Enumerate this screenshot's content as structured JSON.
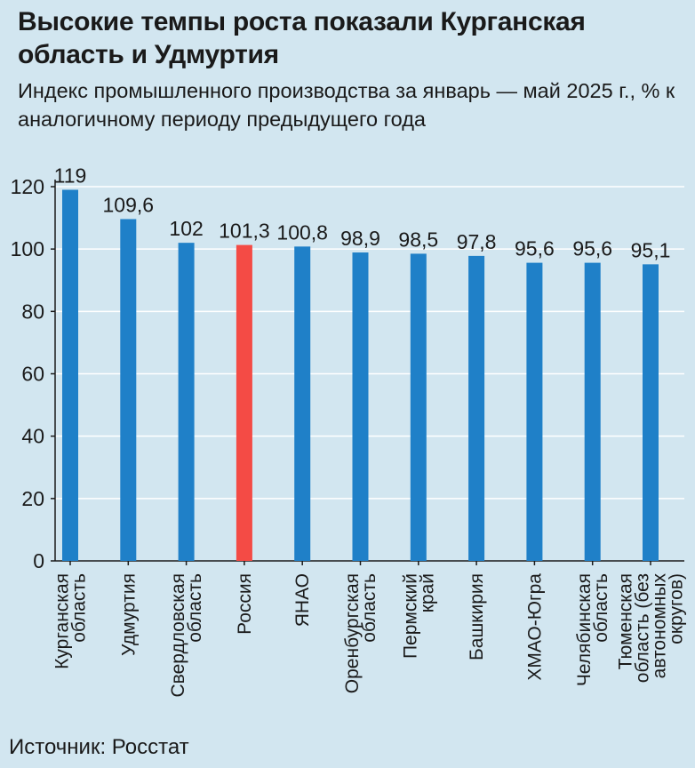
{
  "title": "Высокие темпы роста показали Курганская область и Удмуртия",
  "subtitle": "Индекс промышленного производства за январь — май 2025 г., % к аналогичному периоду предыдущего года",
  "source": "Источник: Росстат",
  "colors": {
    "background": "#d2e6f0",
    "bar": "#1f80c8",
    "highlight": "#f44b45",
    "gridline": "#ffffff"
  },
  "chart_data": {
    "type": "bar",
    "title": "Индекс промышленного производства за январь — май 2025 г., % к аналогичному периоду предыдущего года",
    "xlabel": "",
    "ylabel": "",
    "ylim": [
      0,
      120
    ],
    "yticks": [
      0,
      20,
      40,
      60,
      80,
      100,
      120
    ],
    "grid": true,
    "categories": [
      [
        "Курганская",
        "область"
      ],
      [
        "Удмуртия"
      ],
      [
        "Свердловская",
        "область"
      ],
      [
        "Россия"
      ],
      [
        "ЯНАО"
      ],
      [
        "Оренбургская",
        "область"
      ],
      [
        "Пермский",
        "край"
      ],
      [
        "Башкирия"
      ],
      [
        "ХМАО-Югра"
      ],
      [
        "Челябинская",
        "область"
      ],
      [
        "Тюменская",
        "область (без",
        "автономных",
        "округов)"
      ]
    ],
    "values": [
      119,
      109.6,
      102,
      101.3,
      100.8,
      98.9,
      98.5,
      97.8,
      95.6,
      95.6,
      95.1
    ],
    "value_labels": [
      "119",
      "109,6",
      "102",
      "101,3",
      "100,8",
      "98,9",
      "98,5",
      "97,8",
      "95,6",
      "95,6",
      "95,1"
    ],
    "highlight_index": 3
  }
}
